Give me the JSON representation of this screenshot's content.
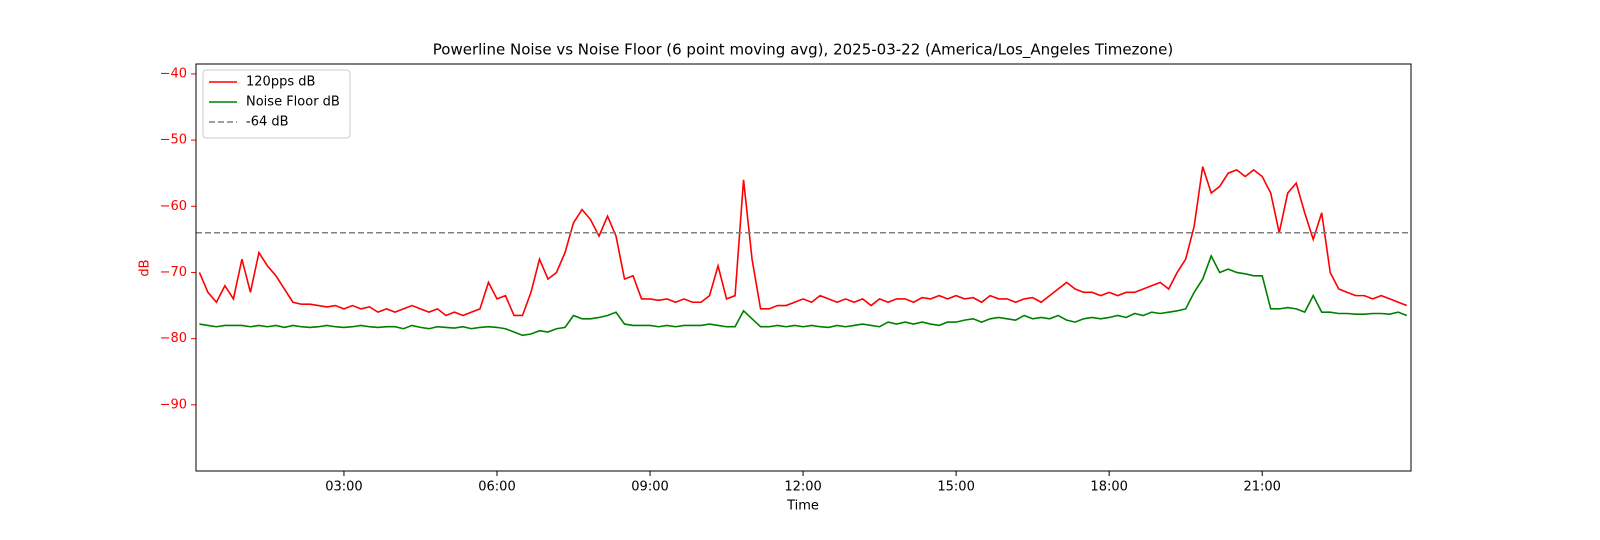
{
  "chart_data": {
    "type": "line",
    "title": "Powerline Noise vs Noise Floor (6 point moving avg), 2025-03-22 (America/Los_Angeles Timezone)",
    "x_label": "Time",
    "y_label": "dB",
    "xlim": [
      "00:06",
      "23:55"
    ],
    "xticks": [
      "03:00",
      "06:00",
      "09:00",
      "12:00",
      "15:00",
      "18:00",
      "21:00"
    ],
    "ylim": [
      -100,
      -38.5
    ],
    "yticks": [
      {
        "value": -90,
        "label": "−90"
      },
      {
        "value": -80,
        "label": "−80"
      },
      {
        "value": -70,
        "label": "−70"
      },
      {
        "value": -60,
        "label": "−60"
      },
      {
        "value": -50,
        "label": "−50"
      },
      {
        "value": -40,
        "label": "−40"
      }
    ],
    "legend": "upper left",
    "x": [
      "00:10",
      "00:20",
      "00:30",
      "00:40",
      "00:50",
      "01:00",
      "01:10",
      "01:20",
      "01:30",
      "01:40",
      "01:50",
      "02:00",
      "02:10",
      "02:20",
      "02:30",
      "02:40",
      "02:50",
      "03:00",
      "03:10",
      "03:20",
      "03:30",
      "03:40",
      "03:50",
      "04:00",
      "04:10",
      "04:20",
      "04:30",
      "04:40",
      "04:50",
      "05:00",
      "05:10",
      "05:20",
      "05:30",
      "05:40",
      "05:50",
      "06:00",
      "06:10",
      "06:20",
      "06:30",
      "06:40",
      "06:50",
      "07:00",
      "07:10",
      "07:20",
      "07:30",
      "07:40",
      "07:50",
      "08:00",
      "08:10",
      "08:20",
      "08:30",
      "08:40",
      "08:50",
      "09:00",
      "09:10",
      "09:20",
      "09:30",
      "09:40",
      "09:50",
      "10:00",
      "10:10",
      "10:20",
      "10:30",
      "10:40",
      "10:50",
      "11:00",
      "11:10",
      "11:20",
      "11:30",
      "11:40",
      "11:50",
      "12:00",
      "12:10",
      "12:20",
      "12:30",
      "12:40",
      "12:50",
      "13:00",
      "13:10",
      "13:20",
      "13:30",
      "13:40",
      "13:50",
      "14:00",
      "14:10",
      "14:20",
      "14:30",
      "14:40",
      "14:50",
      "15:00",
      "15:10",
      "15:20",
      "15:30",
      "15:40",
      "15:50",
      "16:00",
      "16:10",
      "16:20",
      "16:30",
      "16:40",
      "16:50",
      "17:00",
      "17:10",
      "17:20",
      "17:30",
      "17:40",
      "17:50",
      "18:00",
      "18:10",
      "18:20",
      "18:30",
      "18:40",
      "18:50",
      "19:00",
      "19:10",
      "19:20",
      "19:30",
      "19:40",
      "19:50",
      "20:00",
      "20:10",
      "20:20",
      "20:30",
      "20:40",
      "20:50",
      "21:00",
      "21:10",
      "21:20",
      "21:30",
      "21:40",
      "21:50",
      "22:00",
      "22:10",
      "22:20",
      "22:30",
      "22:40",
      "22:50",
      "23:00",
      "23:10",
      "23:20",
      "23:30",
      "23:40",
      "23:50"
    ],
    "series": [
      {
        "name": "120pps dB",
        "color": "#ff0000",
        "values": [
          -70,
          -73,
          -74.5,
          -72,
          -74,
          -68,
          -73,
          -67,
          -69,
          -70.5,
          -72.5,
          -74.5,
          -74.8,
          -74.8,
          -75,
          -75.2,
          -75,
          -75.5,
          -75,
          -75.5,
          -75.2,
          -76,
          -75.5,
          -76,
          -75.5,
          -75,
          -75.5,
          -76,
          -75.5,
          -76.5,
          -76,
          -76.5,
          -76,
          -75.5,
          -71.5,
          -74,
          -73.5,
          -76.5,
          -76.5,
          -73,
          -68,
          -71,
          -70,
          -67,
          -62.5,
          -60.5,
          -62,
          -64.5,
          -61.5,
          -64.5,
          -71,
          -70.5,
          -74,
          -74,
          -74.2,
          -74,
          -74.5,
          -74,
          -74.5,
          -74.5,
          -73.5,
          -69,
          -74,
          -73.5,
          -56,
          -68,
          -75.5,
          -75.5,
          -75,
          -75,
          -74.5,
          -74,
          -74.5,
          -73.5,
          -74,
          -74.5,
          -74,
          -74.5,
          -74,
          -75,
          -74,
          -74.5,
          -74,
          -74,
          -74.5,
          -73.8,
          -74,
          -73.5,
          -74,
          -73.5,
          -74,
          -73.8,
          -74.5,
          -73.5,
          -74,
          -74,
          -74.5,
          -74,
          -73.8,
          -74.5,
          -73.5,
          -72.5,
          -71.5,
          -72.5,
          -73,
          -73,
          -73.5,
          -73,
          -73.5,
          -73,
          -73,
          -72.5,
          -72,
          -71.5,
          -72.5,
          -70,
          -68,
          -63,
          -54,
          -58,
          -57,
          -55,
          -54.5,
          -55.5,
          -54.5,
          -55.5,
          -58,
          -64,
          -58,
          -56.5,
          -61,
          -65,
          -61,
          -70,
          -72.5,
          -73,
          -73.5,
          -73.5,
          -74,
          -73.5,
          -74,
          -74.5,
          -75
        ]
      },
      {
        "name": "Noise Floor dB",
        "color": "#008000",
        "values": [
          -77.8,
          -78,
          -78.2,
          -78,
          -78,
          -78,
          -78.2,
          -78,
          -78.2,
          -78,
          -78.3,
          -78,
          -78.2,
          -78.3,
          -78.2,
          -78,
          -78.2,
          -78.3,
          -78.2,
          -78,
          -78.2,
          -78.3,
          -78.2,
          -78.2,
          -78.5,
          -78,
          -78.3,
          -78.5,
          -78.2,
          -78.3,
          -78.4,
          -78.2,
          -78.5,
          -78.3,
          -78.2,
          -78.3,
          -78.5,
          -79,
          -79.5,
          -79.3,
          -78.8,
          -79,
          -78.5,
          -78.3,
          -76.5,
          -77,
          -77,
          -76.8,
          -76.5,
          -76,
          -77.8,
          -78,
          -78,
          -78,
          -78.2,
          -78,
          -78.2,
          -78,
          -78,
          -78,
          -77.8,
          -78,
          -78.2,
          -78.2,
          -75.8,
          -77,
          -78.2,
          -78.2,
          -78,
          -78.2,
          -78,
          -78.2,
          -78,
          -78.2,
          -78.3,
          -78,
          -78.2,
          -78,
          -77.8,
          -78,
          -78.2,
          -77.5,
          -77.8,
          -77.5,
          -77.8,
          -77.5,
          -77.8,
          -78,
          -77.5,
          -77.5,
          -77.2,
          -77,
          -77.5,
          -77,
          -76.8,
          -77,
          -77.2,
          -76.5,
          -77,
          -76.8,
          -77,
          -76.5,
          -77.2,
          -77.5,
          -77,
          -76.8,
          -77,
          -76.8,
          -76.5,
          -76.8,
          -76.2,
          -76.5,
          -76,
          -76.2,
          -76,
          -75.8,
          -75.5,
          -73,
          -71,
          -67.5,
          -70,
          -69.5,
          -70,
          -70.2,
          -70.5,
          -70.5,
          -75.5,
          -75.5,
          -75.3,
          -75.5,
          -76,
          -73.5,
          -76,
          -76,
          -76.2,
          -76.2,
          -76.3,
          -76.3,
          -76.2,
          -76.2,
          -76.3,
          -76,
          -76.5
        ]
      }
    ],
    "hlines": [
      {
        "name": "-64 dB",
        "value": -64,
        "color": "#808080"
      }
    ]
  }
}
